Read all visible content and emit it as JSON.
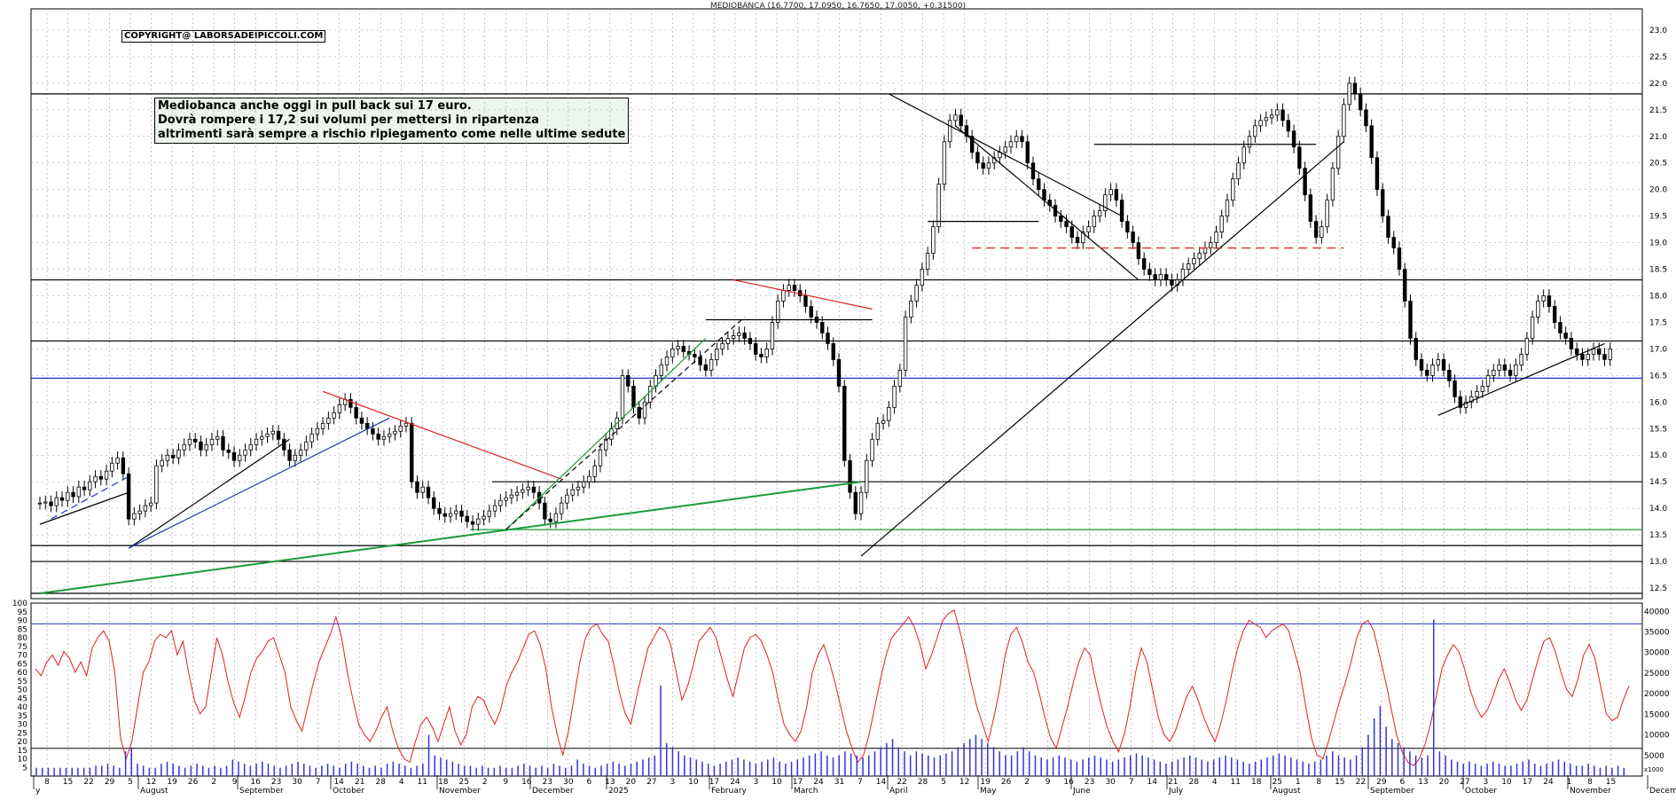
{
  "header": {
    "title": "MEDIOBANCA (16.7700, 17.0950, 16.7650, 17.0050, +0.31500)"
  },
  "copyright": "COPYRIGHT@ LABORSADEIPICCOLI.COM",
  "note": {
    "line1": "Mediobanca anche oggi in pull back sui 17 euro.",
    "line2": "Dovrà  rompere i 17,2 sui volumi per mettersi in ripartenza",
    "line3": "altrimenti sarà sempre a rischio ripiegamento come nelle ultime sedute"
  },
  "colors": {
    "price": "#000000",
    "blue_line": "#2233cc",
    "red_line": "#e02020",
    "green_line": "#1a9a3a",
    "oscillator": "#e02020",
    "volume": "#3333dd",
    "grid": "#9a9a9a"
  },
  "chart_data": {
    "type": "candlestick",
    "title": "MEDIOBANCA (16.7700, 17.0950, 16.7650, 17.0050, +0.31500)",
    "price_axis": {
      "ylim": [
        12.3,
        23.4
      ],
      "ticks": [
        "23.0",
        "22.5",
        "22.0",
        "21.5",
        "21.0",
        "20.5",
        "20.0",
        "19.5",
        "19.0",
        "18.5",
        "18.0",
        "17.5",
        "17.0",
        "16.5",
        "16.0",
        "15.5",
        "15.0",
        "14.5",
        "14.0",
        "13.5",
        "13.0",
        "12.5"
      ]
    },
    "oscillator_axis": {
      "ylim": [
        0,
        100
      ],
      "ticks": [
        "100",
        "95",
        "90",
        "85",
        "80",
        "75",
        "70",
        "65",
        "60",
        "55",
        "50",
        "45",
        "40",
        "35",
        "30",
        "25",
        "20",
        "15",
        "10",
        "5"
      ]
    },
    "volume_axis": {
      "ticks": [
        "40000",
        "35000",
        "30000",
        "25000",
        "20000",
        "15000",
        "10000",
        "5000"
      ],
      "label_bottom": "x1000"
    },
    "x_axis": {
      "day_ticks": [
        "8",
        "15",
        "22",
        "29",
        "5",
        "12",
        "19",
        "26",
        "2",
        "9",
        "16",
        "23",
        "30",
        "7",
        "14",
        "21",
        "28",
        "4",
        "11",
        "18",
        "25",
        "2",
        "9",
        "16",
        "23",
        "30",
        "6",
        "13",
        "20",
        "27",
        "3",
        "10",
        "17",
        "24",
        "3",
        "10",
        "17",
        "24",
        "31",
        "7",
        "14",
        "22",
        "28",
        "5",
        "12",
        "19",
        "26",
        "2",
        "9",
        "16",
        "23",
        "30",
        "7",
        "14",
        "21",
        "28",
        "4",
        "11",
        "18",
        "25",
        "1",
        "8",
        "15",
        "22",
        "29",
        "6",
        "13",
        "20",
        "27",
        "3",
        "10",
        "17",
        "24",
        "1",
        "8",
        "15"
      ],
      "month_labels": [
        "y",
        "August",
        "September",
        "October",
        "November",
        "December",
        "2025",
        "February",
        "March",
        "April",
        "May",
        "June",
        "July",
        "August",
        "September",
        "October",
        "November",
        "December"
      ]
    },
    "closes": [
      14.1,
      14.12,
      14.05,
      14.2,
      14.15,
      14.3,
      14.22,
      14.4,
      14.35,
      14.5,
      14.6,
      14.55,
      14.7,
      14.85,
      14.95,
      14.65,
      13.8,
      13.9,
      13.95,
      14.05,
      14.1,
      14.8,
      14.9,
      15.0,
      14.95,
      15.1,
      15.2,
      15.3,
      15.25,
      15.1,
      15.2,
      15.3,
      15.35,
      15.1,
      15.05,
      14.9,
      15.0,
      15.1,
      15.2,
      15.3,
      15.35,
      15.4,
      15.45,
      15.3,
      15.1,
      14.9,
      15.0,
      15.1,
      15.25,
      15.4,
      15.5,
      15.6,
      15.7,
      15.8,
      15.95,
      16.05,
      15.9,
      15.7,
      15.6,
      15.5,
      15.4,
      15.3,
      15.35,
      15.4,
      15.45,
      15.55,
      15.6,
      14.5,
      14.3,
      14.4,
      14.2,
      14.0,
      13.9,
      13.85,
      13.9,
      13.95,
      13.85,
      13.75,
      13.7,
      13.8,
      13.85,
      13.95,
      14.05,
      14.15,
      14.2,
      14.25,
      14.3,
      14.35,
      14.4,
      14.3,
      14.1,
      13.8,
      13.75,
      13.9,
      14.1,
      14.25,
      14.35,
      14.4,
      14.5,
      14.6,
      14.8,
      15.1,
      15.3,
      15.5,
      15.7,
      16.5,
      16.3,
      15.9,
      15.7,
      16.0,
      16.3,
      16.5,
      16.7,
      16.85,
      17.0,
      17.05,
      16.95,
      16.9,
      16.85,
      16.7,
      16.6,
      16.8,
      17.0,
      17.1,
      17.2,
      17.25,
      17.3,
      17.2,
      17.1,
      16.9,
      16.85,
      17.0,
      17.5,
      17.9,
      18.1,
      18.2,
      18.1,
      18.0,
      17.8,
      17.6,
      17.5,
      17.3,
      17.1,
      16.8,
      16.3,
      14.9,
      14.3,
      13.9,
      14.3,
      14.9,
      15.3,
      15.6,
      15.65,
      15.9,
      16.3,
      16.6,
      17.6,
      17.9,
      18.2,
      18.5,
      18.8,
      19.3,
      20.1,
      20.9,
      21.3,
      21.4,
      21.2,
      21.0,
      20.7,
      20.5,
      20.4,
      20.5,
      20.6,
      20.7,
      20.8,
      20.9,
      21.0,
      20.9,
      20.5,
      20.2,
      20.0,
      19.8,
      19.7,
      19.5,
      19.4,
      19.3,
      19.1,
      19.0,
      19.2,
      19.3,
      19.5,
      19.6,
      19.9,
      20.0,
      19.8,
      19.4,
      19.2,
      19.0,
      18.7,
      18.5,
      18.4,
      18.3,
      18.4,
      18.3,
      18.2,
      18.3,
      18.5,
      18.6,
      18.7,
      18.8,
      18.9,
      19.0,
      19.2,
      19.5,
      19.8,
      20.2,
      20.5,
      20.8,
      21.0,
      21.2,
      21.3,
      21.35,
      21.4,
      21.5,
      21.3,
      21.1,
      20.8,
      20.4,
      19.9,
      19.4,
      19.1,
      19.3,
      19.8,
      20.4,
      21.0,
      21.6,
      22.0,
      21.8,
      21.5,
      21.2,
      20.6,
      20.0,
      19.5,
      19.1,
      18.9,
      18.5,
      17.9,
      17.2,
      16.8,
      16.6,
      16.5,
      16.7,
      16.8,
      16.6,
      16.4,
      16.1,
      15.9,
      16.0,
      16.1,
      16.2,
      16.3,
      16.5,
      16.6,
      16.7,
      16.6,
      16.5,
      16.7,
      16.9,
      17.2,
      17.6,
      17.9,
      18.0,
      17.8,
      17.5,
      17.3,
      17.2,
      17.0,
      16.9,
      16.8,
      16.9,
      17.0,
      16.9,
      16.8,
      17.0
    ],
    "oscillator": [
      62,
      58,
      66,
      70,
      64,
      72,
      68,
      60,
      66,
      58,
      74,
      80,
      84,
      78,
      60,
      22,
      10,
      20,
      40,
      60,
      66,
      78,
      82,
      80,
      84,
      70,
      78,
      60,
      44,
      36,
      40,
      60,
      80,
      70,
      54,
      42,
      34,
      46,
      60,
      68,
      72,
      78,
      80,
      70,
      60,
      40,
      32,
      26,
      40,
      54,
      66,
      74,
      82,
      92,
      80,
      60,
      44,
      30,
      24,
      20,
      26,
      34,
      40,
      26,
      16,
      10,
      8,
      20,
      30,
      34,
      28,
      20,
      30,
      40,
      26,
      18,
      24,
      40,
      46,
      44,
      36,
      30,
      38,
      52,
      60,
      66,
      74,
      82,
      84,
      76,
      62,
      40,
      24,
      12,
      26,
      46,
      66,
      80,
      86,
      88,
      82,
      78,
      64,
      48,
      36,
      30,
      46,
      60,
      74,
      80,
      86,
      84,
      76,
      60,
      44,
      52,
      64,
      78,
      82,
      86,
      80,
      68,
      56,
      46,
      60,
      74,
      80,
      82,
      78,
      70,
      60,
      44,
      30,
      24,
      20,
      26,
      40,
      60,
      70,
      76,
      66,
      54,
      40,
      26,
      16,
      8,
      12,
      24,
      40,
      56,
      70,
      80,
      84,
      88,
      92,
      86,
      76,
      62,
      70,
      80,
      90,
      94,
      96,
      84,
      70,
      54,
      40,
      30,
      20,
      34,
      50,
      70,
      82,
      86,
      78,
      66,
      60,
      48,
      34,
      22,
      16,
      28,
      40,
      54,
      66,
      74,
      70,
      54,
      40,
      28,
      20,
      14,
      24,
      40,
      60,
      74,
      66,
      50,
      34,
      24,
      20,
      26,
      36,
      46,
      52,
      44,
      34,
      26,
      20,
      30,
      44,
      60,
      74,
      84,
      90,
      88,
      86,
      80,
      84,
      86,
      88,
      84,
      72,
      60,
      40,
      22,
      12,
      10,
      20,
      32,
      44,
      54,
      66,
      80,
      88,
      90,
      84,
      70,
      56,
      40,
      24,
      14,
      8,
      6,
      10,
      18,
      30,
      46,
      62,
      70,
      76,
      72,
      62,
      50,
      40,
      34,
      38,
      46,
      56,
      62,
      54,
      44,
      38,
      44,
      56,
      68,
      78,
      80,
      72,
      60,
      50,
      46,
      56,
      70,
      76,
      68,
      52,
      36,
      32,
      34,
      44,
      52
    ],
    "volumes": [
      2000,
      2000,
      2000,
      2000,
      2000,
      2000,
      2000,
      2000,
      2000,
      2000,
      2500,
      2500,
      3000,
      2500,
      2000,
      6000,
      7000,
      3000,
      2500,
      2000,
      2000,
      3000,
      3500,
      3000,
      2500,
      2000,
      2500,
      3000,
      2500,
      2000,
      2500,
      2000,
      2500,
      4000,
      3500,
      3000,
      2500,
      3000,
      3500,
      3000,
      2500,
      2000,
      2500,
      3000,
      3500,
      3000,
      2500,
      2000,
      2500,
      3000,
      2500,
      2000,
      3000,
      3500,
      3000,
      2500,
      2000,
      2500,
      2000,
      3000,
      3500,
      3000,
      2500,
      2000,
      2500,
      3000,
      10000,
      5000,
      4500,
      4000,
      3500,
      3000,
      2500,
      2500,
      2000,
      2500,
      2000,
      2000,
      2500,
      2000,
      2000,
      2500,
      3000,
      2500,
      2000,
      2500,
      2000,
      3000,
      2500,
      2000,
      2500,
      4000,
      3000,
      2500,
      2000,
      2500,
      3000,
      3500,
      3000,
      2500,
      3000,
      3500,
      4000,
      4500,
      5000,
      22000,
      8000,
      7000,
      6000,
      5000,
      4500,
      4000,
      3500,
      3000,
      2500,
      3000,
      3500,
      4000,
      4500,
      4000,
      3500,
      3000,
      3500,
      4000,
      4500,
      3500,
      3000,
      3500,
      4000,
      4500,
      5000,
      5500,
      6000,
      5000,
      4500,
      5000,
      6000,
      5500,
      5000,
      4500,
      5000,
      6000,
      7000,
      8000,
      9000,
      7000,
      6000,
      5000,
      6000,
      5500,
      5000,
      4500,
      5000,
      5500,
      6000,
      7000,
      8000,
      9000,
      10000,
      9000,
      8000,
      7000,
      6000,
      5000,
      5000,
      6000,
      7000,
      6000,
      5000,
      4500,
      4000,
      4500,
      5000,
      4500,
      4000,
      3500,
      4000,
      4500,
      5000,
      4500,
      4000,
      3500,
      4000,
      4500,
      5000,
      5500,
      5000,
      4500,
      4000,
      3500,
      3000,
      3500,
      4000,
      4500,
      5000,
      4500,
      4000,
      3500,
      4000,
      4500,
      5000,
      4500,
      4000,
      3500,
      3000,
      3500,
      4000,
      4500,
      5000,
      5500,
      5000,
      4500,
      4000,
      3500,
      3000,
      3500,
      4000,
      5000,
      6000,
      5000,
      4500,
      4000,
      5000,
      7000,
      10000,
      14000,
      17000,
      12000,
      9000,
      8000,
      7000,
      6000,
      5000,
      4500,
      5000,
      38000,
      6000,
      5000,
      4000,
      3500,
      3000,
      3500,
      3000,
      2500,
      3000,
      3500,
      3000,
      2500,
      2500,
      3000,
      3500,
      4000,
      3000,
      2500,
      3000,
      3500,
      4000,
      3500,
      3000,
      2500,
      2500,
      3000,
      2500,
      2000,
      2500,
      2000,
      2500,
      2000
    ],
    "horizontal_levels": [
      21.8,
      18.3,
      17.15,
      16.45,
      14.5,
      13.6,
      13.3,
      13.0,
      12.4
    ]
  }
}
